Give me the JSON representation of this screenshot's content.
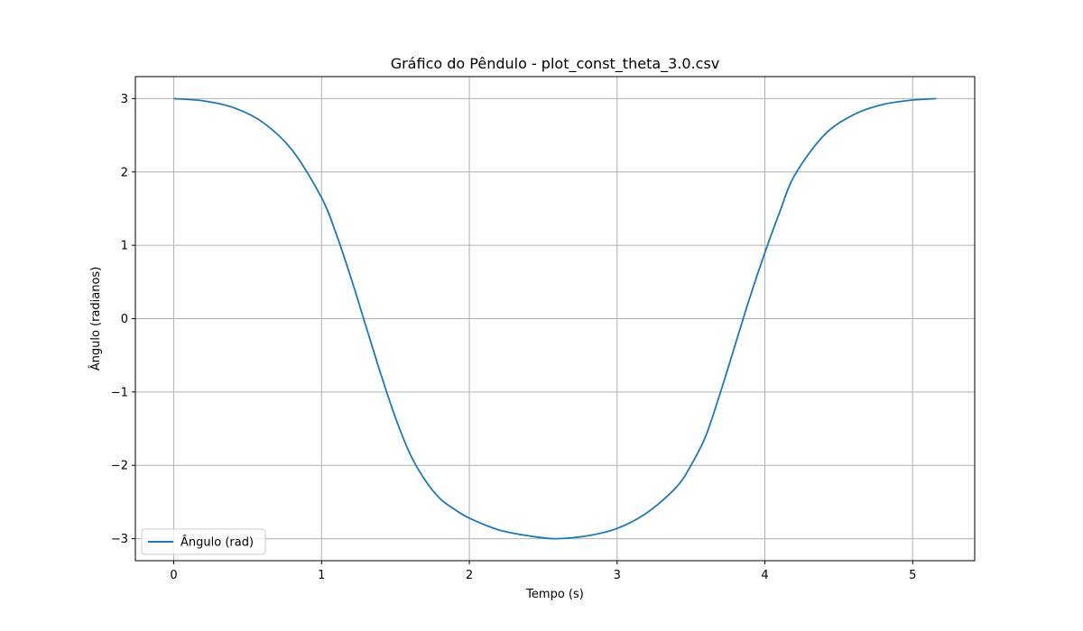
{
  "chart_data": {
    "type": "line",
    "title": "Gráfico do Pêndulo - plot_const_theta_3.0.csv",
    "xlabel": "Tempo (s)",
    "ylabel": "Ângulo (radianos)",
    "xlim": [
      -0.26,
      5.42
    ],
    "ylim": [
      -3.3,
      3.3
    ],
    "xticks": [
      0,
      1,
      2,
      3,
      4,
      5
    ],
    "xtick_labels": [
      "0",
      "1",
      "2",
      "3",
      "4",
      "5"
    ],
    "yticks": [
      -3,
      -2,
      -1,
      0,
      1,
      2,
      3
    ],
    "ytick_labels": [
      "−3",
      "−2",
      "−1",
      "0",
      "1",
      "2",
      "3"
    ],
    "grid": true,
    "legend_position": "lower-left",
    "series": [
      {
        "name": "Ângulo (rad)",
        "color": "#1f77b4",
        "x": [
          0,
          0.2,
          0.4,
          0.6,
          0.8,
          1.0,
          1.1,
          1.2,
          1.3,
          1.4,
          1.5,
          1.6,
          1.7,
          1.8,
          1.9,
          2.0,
          2.2,
          2.4,
          2.58,
          2.8,
          3.0,
          3.2,
          3.4,
          3.5,
          3.6,
          3.7,
          3.8,
          3.9,
          4.0,
          4.1,
          4.2,
          4.4,
          4.6,
          4.8,
          5.0,
          5.16
        ],
        "y": [
          3.0,
          2.97,
          2.88,
          2.68,
          2.3,
          1.65,
          1.15,
          0.55,
          -0.1,
          -0.75,
          -1.35,
          -1.85,
          -2.2,
          -2.45,
          -2.6,
          -2.72,
          -2.88,
          -2.96,
          -3.0,
          -2.96,
          -2.86,
          -2.65,
          -2.3,
          -2.0,
          -1.6,
          -1.0,
          -0.35,
          0.3,
          0.9,
          1.45,
          1.95,
          2.5,
          2.78,
          2.92,
          2.98,
          3.0
        ]
      }
    ]
  }
}
